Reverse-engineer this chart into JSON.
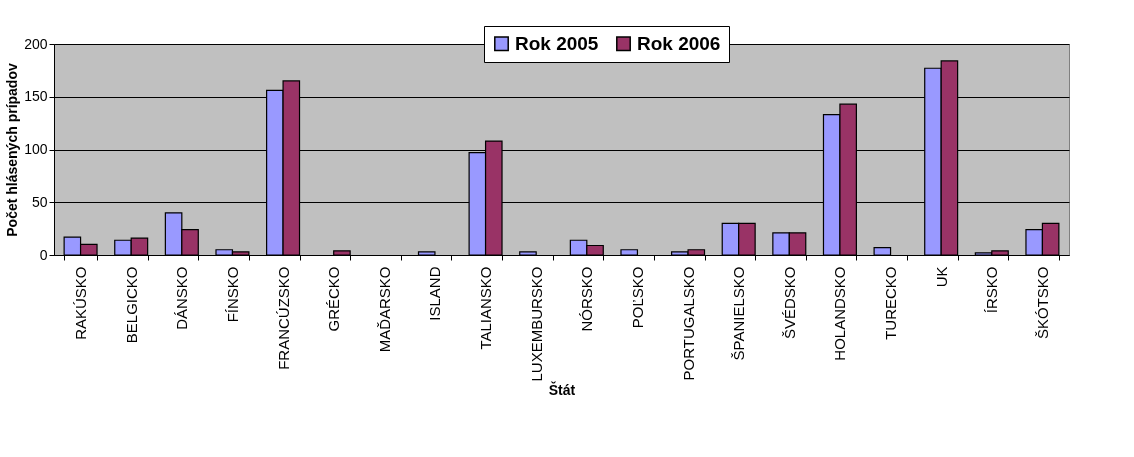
{
  "chart_data": {
    "type": "bar",
    "xlabel": "Štát",
    "ylabel": "Počet hlásených prípadov",
    "categories": [
      "RAKÚSKO",
      "BELGICKO",
      "DÁNSKO",
      "FÍNSKO",
      "FRANCÚZSKO",
      "GRÉCKO",
      "MAĎARSKO",
      "ISLAND",
      "TALIANSKO",
      "LUXEMBURSKO",
      "NÓRSKO",
      "POĽSKO",
      "PORTUGALSKO",
      "ŠPANIELSKO",
      "ŠVÉDSKO",
      "HOLANDSKO",
      "TURECKO",
      "UK",
      "ÍRSKO",
      "ŠKÓTSKO"
    ],
    "series": [
      {
        "name": "Rok 2005",
        "color": "#9999ff",
        "values": [
          17,
          14,
          40,
          5,
          156,
          0,
          0,
          3,
          97,
          3,
          14,
          5,
          3,
          30,
          21,
          133,
          7,
          177,
          2,
          24
        ]
      },
      {
        "name": "Rok 2006",
        "color": "#993366",
        "values": [
          10,
          16,
          24,
          3,
          165,
          4,
          0,
          0,
          108,
          0,
          9,
          0,
          5,
          30,
          21,
          143,
          0,
          184,
          4,
          30
        ]
      }
    ],
    "ylim": [
      0,
      200
    ],
    "yticks": [
      0,
      50,
      100,
      150,
      200
    ],
    "grid": "y",
    "legend": "top"
  }
}
